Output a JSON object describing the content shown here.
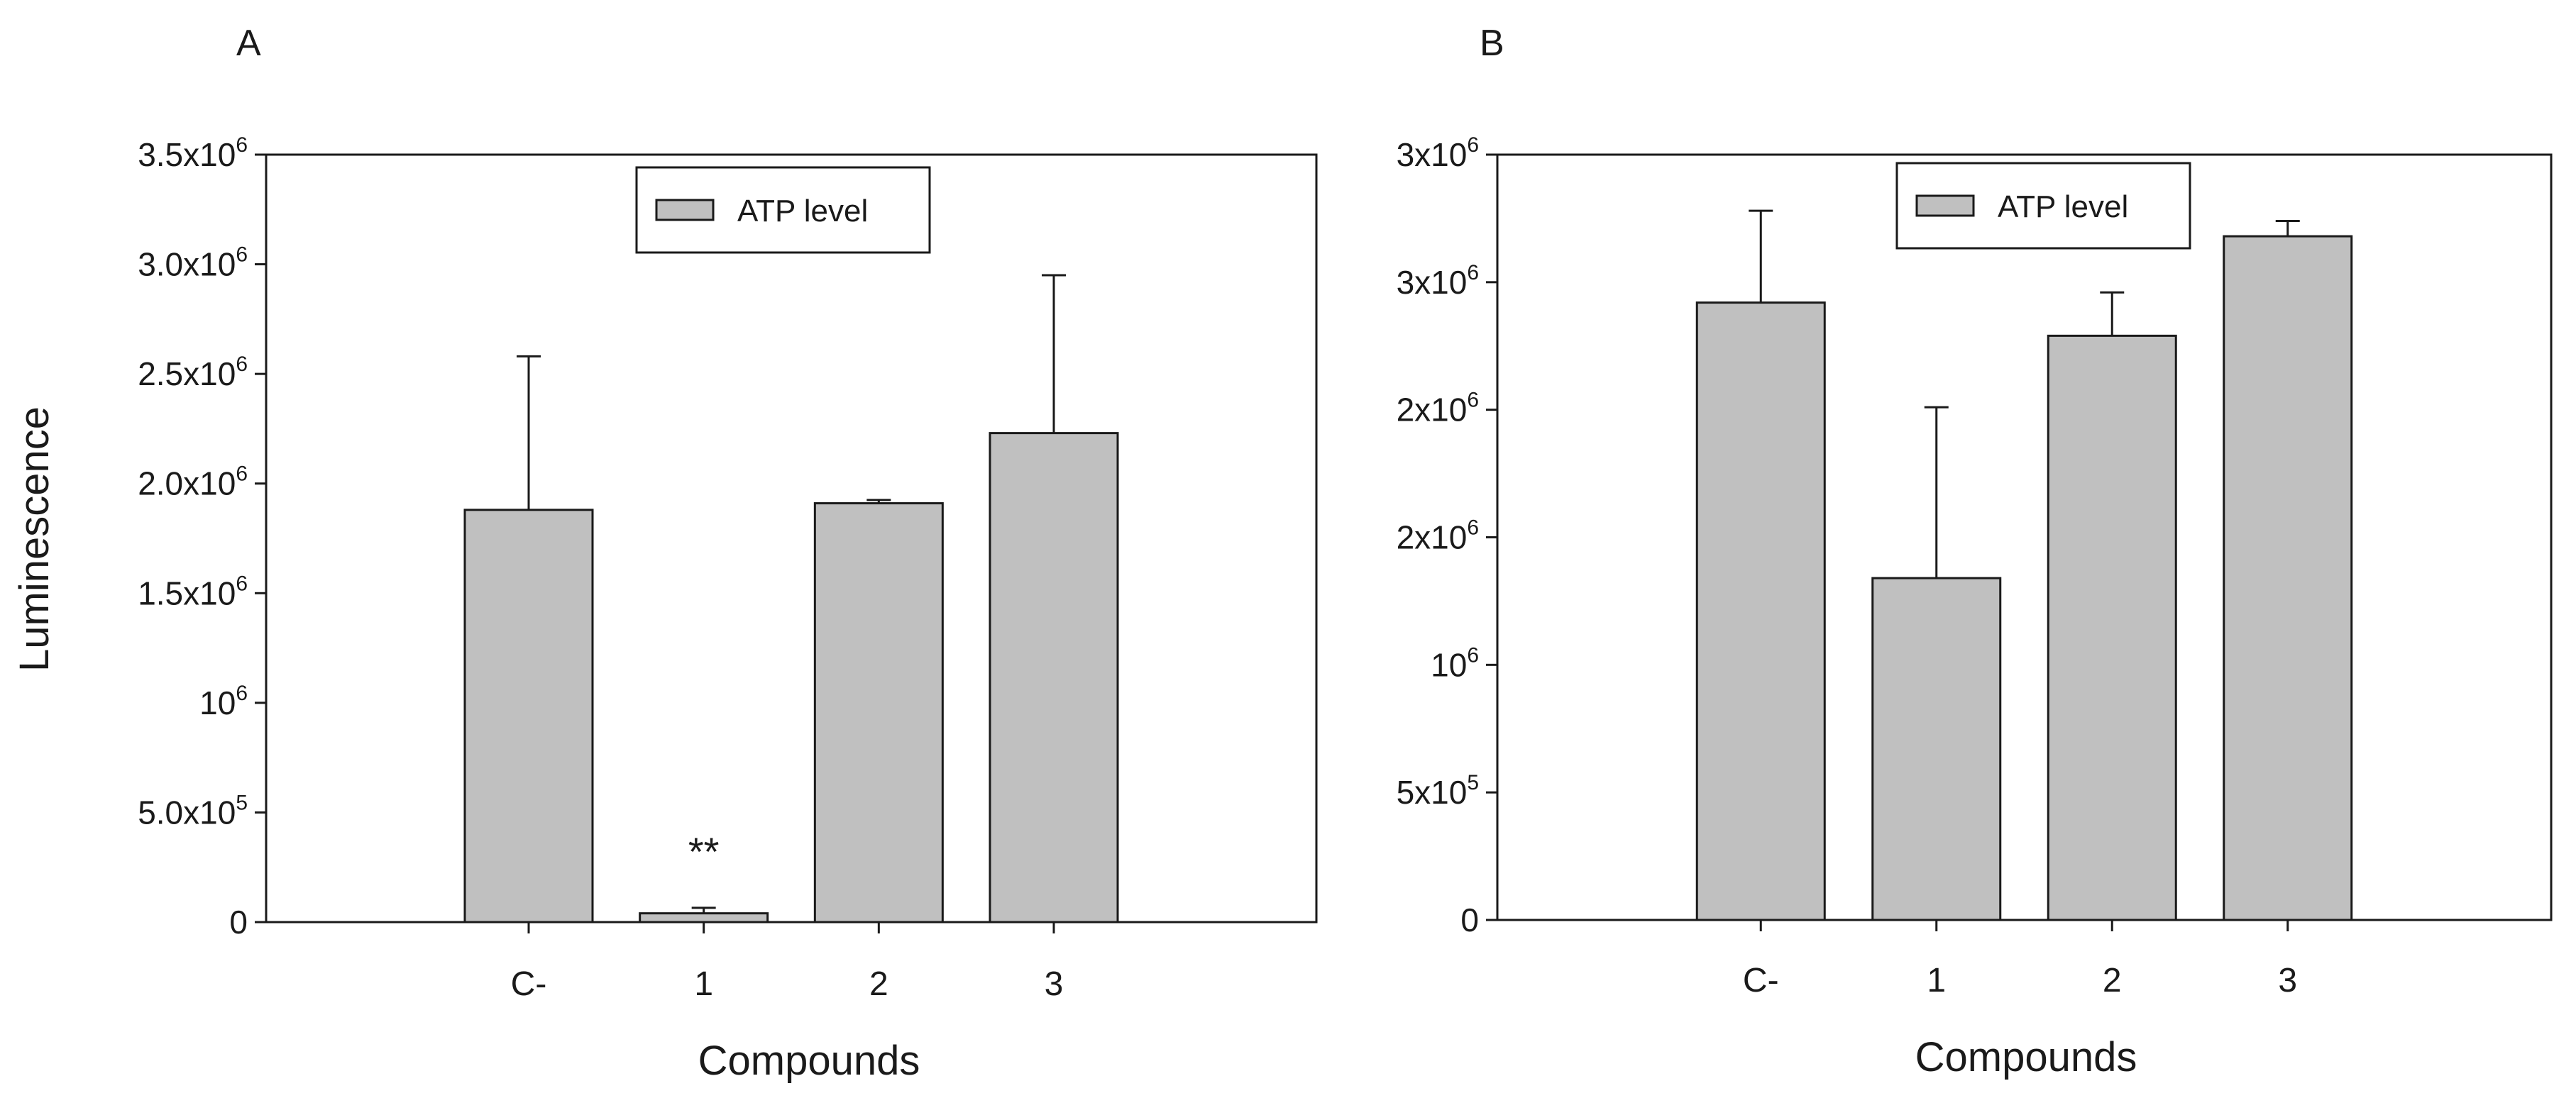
{
  "chart_data": [
    {
      "panel_label": "A",
      "type": "bar",
      "categories": [
        "C-",
        "1",
        "2",
        "3"
      ],
      "series": [
        {
          "name": "ATP level",
          "values": [
            1880000,
            40000,
            1910000,
            2230000
          ],
          "errors": [
            700000,
            25000,
            15000,
            720000
          ]
        }
      ],
      "annotations": [
        {
          "category": "1",
          "text": "**"
        }
      ],
      "xlabel": "Compounds",
      "ylabel": "Luminescence",
      "ylim": [
        0,
        3500000
      ],
      "yticks": [
        {
          "value": 0,
          "text": "0"
        },
        {
          "value": 500000,
          "mant": "5.0x10",
          "exp": "5"
        },
        {
          "value": 1000000,
          "mant": "10",
          "exp": "6"
        },
        {
          "value": 1500000,
          "mant": "1.5x10",
          "exp": "6"
        },
        {
          "value": 2000000,
          "mant": "2.0x10",
          "exp": "6"
        },
        {
          "value": 2500000,
          "mant": "2.5x10",
          "exp": "6"
        },
        {
          "value": 3000000,
          "mant": "3.0x10",
          "exp": "6"
        },
        {
          "value": 3500000,
          "mant": "3.5x10",
          "exp": "6"
        }
      ],
      "legend": {
        "label": "ATP level",
        "position": "top-center"
      }
    },
    {
      "panel_label": "B",
      "type": "bar",
      "categories": [
        "C-",
        "1",
        "2",
        "3"
      ],
      "series": [
        {
          "name": "ATP level",
          "values": [
            2420000,
            1340000,
            2290000,
            2680000
          ],
          "errors": [
            360000,
            670000,
            170000,
            60000
          ]
        }
      ],
      "annotations": [],
      "xlabel": "Compounds",
      "ylabel": "",
      "ylim": [
        0,
        3000000
      ],
      "yticks": [
        {
          "value": 0,
          "text": "0"
        },
        {
          "value": 500000,
          "mant": "5x10",
          "exp": "5"
        },
        {
          "value": 1000000,
          "mant": "10",
          "exp": "6"
        },
        {
          "value": 1500000,
          "mant": "2x10",
          "exp": "6"
        },
        {
          "value": 2000000,
          "mant": "2x10",
          "exp": "6"
        },
        {
          "value": 2500000,
          "mant": "3x10",
          "exp": "6"
        },
        {
          "value": 3000000,
          "mant": "3x10",
          "exp": "6"
        }
      ],
      "legend": {
        "label": "ATP level",
        "position": "top-center"
      }
    }
  ],
  "colors": {
    "bar_fill": "#c0c0c0",
    "stroke": "#1a1a1a",
    "background": "#ffffff"
  }
}
